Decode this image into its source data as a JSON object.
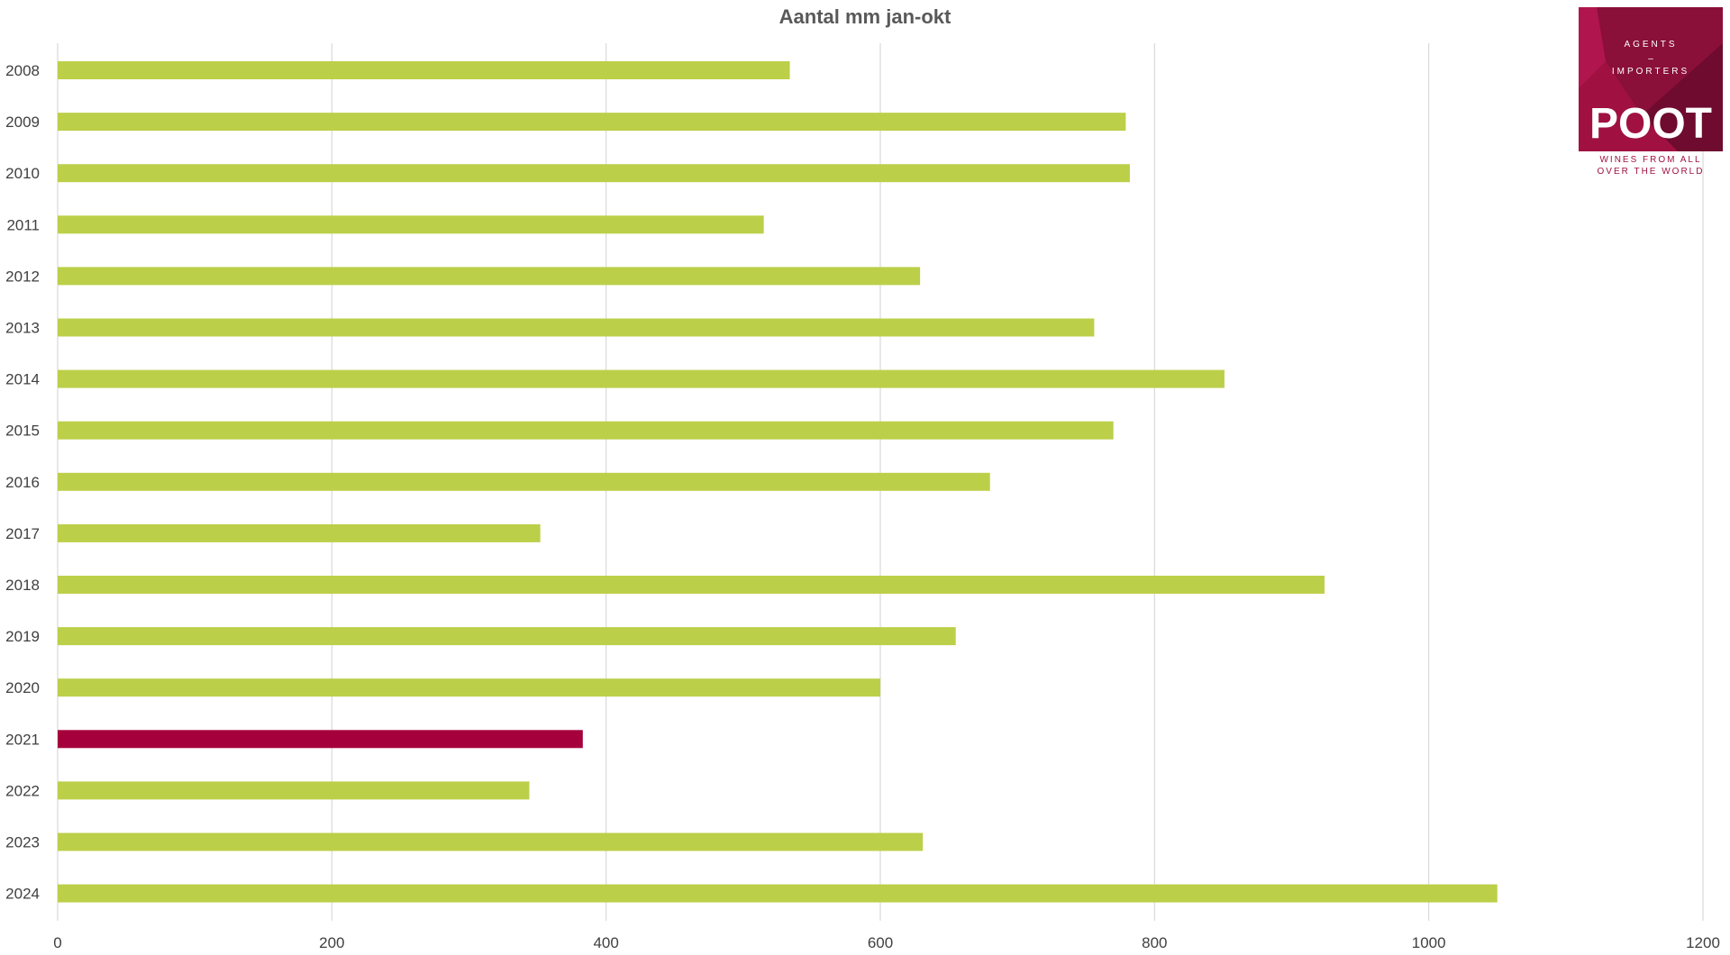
{
  "chart_data": {
    "type": "bar",
    "orientation": "horizontal",
    "title": "Aantal mm jan-okt",
    "categories": [
      "2008",
      "2009",
      "2010",
      "2011",
      "2012",
      "2013",
      "2014",
      "2015",
      "2016",
      "2017",
      "2018",
      "2019",
      "2020",
      "2021",
      "2022",
      "2023",
      "2024"
    ],
    "values": [
      534,
      779,
      782,
      515,
      629,
      756,
      851,
      770,
      680,
      352,
      924,
      655,
      600,
      383,
      344,
      631,
      1050
    ],
    "xlim": [
      0,
      1200
    ],
    "xticks": [
      "0",
      "200",
      "400",
      "600",
      "800",
      "1000",
      "1200"
    ],
    "grid": "vertical",
    "legend": "none",
    "colors": {
      "bar": "#bccf49",
      "highlight": "#a5003c",
      "grid": "#d9d9d9"
    },
    "highlight_category": "2021"
  },
  "logo": {
    "line1": "AGENTS",
    "line2": "–",
    "line3": "IMPORTERS",
    "name": "POOT",
    "tagline1": "WINES FROM ALL",
    "tagline2": "OVER THE WORLD",
    "color": "#a01141"
  }
}
